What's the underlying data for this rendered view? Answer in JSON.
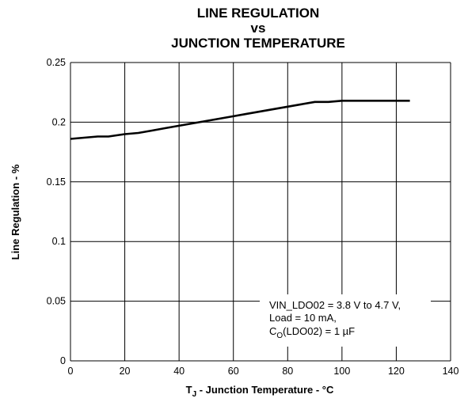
{
  "chart_data": {
    "type": "line",
    "title_lines": [
      "LINE REGULATION",
      "vs",
      "JUNCTION TEMPERATURE"
    ],
    "xlabel": {
      "main": "T",
      "sub": "J",
      "rest": " - Junction Temperature - °C"
    },
    "ylabel": "Line Regulation - %",
    "xlim": [
      0,
      140
    ],
    "ylim": [
      0,
      0.25
    ],
    "x_ticks": [
      "0",
      "20",
      "40",
      "60",
      "80",
      "100",
      "120",
      "140"
    ],
    "y_ticks": [
      "0",
      "0.05",
      "0.1",
      "0.15",
      "0.2",
      "0.25"
    ],
    "grid": true,
    "annotation": {
      "line1": "VIN_LDO02 = 3.8 V to 4.7 V,",
      "line2": "Load = 10 mA,",
      "line3_main": "C",
      "line3_sub": "O",
      "line3_rest": "(LDO02) = 1 µF"
    },
    "series": [
      {
        "x": [
          0,
          5,
          10,
          14,
          20,
          25,
          30,
          35,
          40,
          45,
          50,
          55,
          60,
          65,
          70,
          75,
          80,
          85,
          90,
          95,
          100,
          105,
          110,
          115,
          120,
          125
        ],
        "y": [
          0.186,
          0.187,
          0.188,
          0.188,
          0.19,
          0.191,
          0.193,
          0.195,
          0.197,
          0.199,
          0.201,
          0.203,
          0.205,
          0.207,
          0.209,
          0.211,
          0.213,
          0.215,
          0.217,
          0.217,
          0.218,
          0.218,
          0.218,
          0.218,
          0.218,
          0.218
        ]
      }
    ]
  }
}
